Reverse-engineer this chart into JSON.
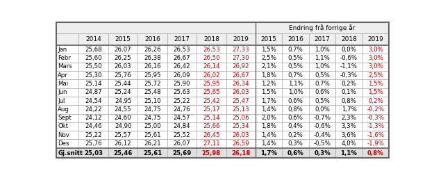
{
  "title_right": "Endring frå forrige år",
  "col_headers": [
    "",
    "2014",
    "2015",
    "2016",
    "2017",
    "2018",
    "2019",
    "2015",
    "2016",
    "2017",
    "2018",
    "2019"
  ],
  "rows": [
    {
      "label": "Jan",
      "vals": [
        "25,68",
        "26,07",
        "26,26",
        "26,53",
        "26,53",
        "27,33",
        "1,5%",
        "0,7%",
        "1,0%",
        "0,0%",
        "3,0%"
      ]
    },
    {
      "label": "Febr",
      "vals": [
        "25,60",
        "26,25",
        "26,38",
        "26,67",
        "26,50",
        "27,30",
        "2,5%",
        "0,5%",
        "1,1%",
        "-0,6%",
        "3,0%"
      ]
    },
    {
      "label": "Mars",
      "vals": [
        "25,50",
        "26,03",
        "26,16",
        "26,42",
        "26,14",
        "26,92",
        "2,1%",
        "0,5%",
        "1,0%",
        "-1,1%",
        "3,0%"
      ]
    },
    {
      "label": "Apr",
      "vals": [
        "25,30",
        "25,76",
        "25,95",
        "26,09",
        "26,02",
        "26,67",
        "1,8%",
        "0,7%",
        "0,5%",
        "-0,3%",
        "2,5%"
      ]
    },
    {
      "label": "Mai",
      "vals": [
        "25,14",
        "25,44",
        "25,72",
        "25,90",
        "25,95",
        "26,34",
        "1,2%",
        "1,1%",
        "0,7%",
        "0,2%",
        "1,5%"
      ]
    },
    {
      "label": "Jun",
      "vals": [
        "24,87",
        "25,24",
        "25,48",
        "25,63",
        "25,65",
        "26,03",
        "1,5%",
        "1,0%",
        "0,6%",
        "0,1%",
        "1,5%"
      ]
    },
    {
      "label": "Jul",
      "vals": [
        "24,54",
        "24,95",
        "25,10",
        "25,22",
        "25,42",
        "25,47",
        "1,7%",
        "0,6%",
        "0,5%",
        "0,8%",
        "0,2%"
      ]
    },
    {
      "label": "Aug",
      "vals": [
        "24,22",
        "24,55",
        "24,75",
        "24,76",
        "25,17",
        "25,13",
        "1,4%",
        "0,8%",
        "0,0%",
        "1,7%",
        "-0,2%"
      ]
    },
    {
      "label": "Sept",
      "vals": [
        "24,12",
        "24,60",
        "24,75",
        "24,57",
        "25,14",
        "25,06",
        "2,0%",
        "0,6%",
        "-0,7%",
        "2,3%",
        "-0,3%"
      ]
    },
    {
      "label": "Okt",
      "vals": [
        "24,46",
        "24,90",
        "25,00",
        "24,84",
        "25,66",
        "25,34",
        "1,8%",
        "0,4%",
        "-0,6%",
        "3,3%",
        "-1,3%"
      ]
    },
    {
      "label": "Nov",
      "vals": [
        "25,22",
        "25,57",
        "25,61",
        "25,52",
        "26,45",
        "26,03",
        "1,4%",
        "0,2%",
        "-0,4%",
        "3,6%",
        "-1,6%"
      ]
    },
    {
      "label": "Des",
      "vals": [
        "25,76",
        "26,12",
        "26,21",
        "26,07",
        "27,11",
        "26,59",
        "1,4%",
        "0,3%",
        "-0,5%",
        "4,0%",
        "-1,9%"
      ]
    }
  ],
  "footer": {
    "label": "Gj.snitt",
    "vals": [
      "25,03",
      "25,46",
      "25,61",
      "25,69",
      "25,98",
      "26,18",
      "1,7%",
      "0,6%",
      "0,3%",
      "1,1%",
      "0,8%"
    ]
  },
  "red_val_cols": [
    4,
    5
  ],
  "red_pct_cols": [
    10
  ],
  "normal_color": "#000000",
  "red_color": "#cc0000",
  "header_bg": "#eeeeee",
  "row_bg": "#ffffff",
  "footer_bg": "#e0e0e0",
  "border_color": "#aaaaaa",
  "outer_border_color": "#666666",
  "font_size": 6.2,
  "header_font_size": 6.5
}
